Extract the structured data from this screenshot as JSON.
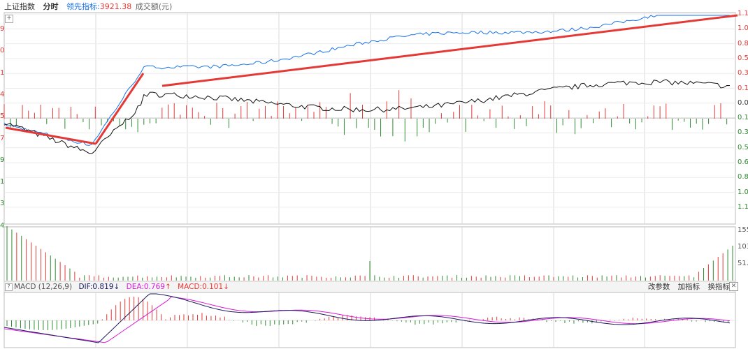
{
  "header": {
    "index_name": "上证指数",
    "mode_tab": "分时",
    "leader_label": "领先指标:",
    "leader_value": "3921.38",
    "volume_label": "成交额(元)"
  },
  "macd_panel": {
    "indicator": "MACD (12,26,9)",
    "dif_label": "DIF:",
    "dif_value": "0.819",
    "dif_arrow": "↓",
    "dea_label": "DEA:",
    "dea_value": "0.769",
    "dea_arrow": "↑",
    "macd_label": "MACD:",
    "macd_value": "0.101",
    "macd_arrow": "↓",
    "buttons": {
      "change_params": "改参数",
      "add_indicator": "加指标",
      "switch_indicator": "换指标"
    },
    "close_icon": "✕"
  },
  "left_axis_digits": [
    "9",
    "0",
    "1",
    "4",
    "5",
    "7",
    "9",
    "1",
    "3",
    "4"
  ],
  "right_axis": {
    "price_labels": [
      "1.1",
      "1.0",
      "0.8",
      "0.5",
      "0.3",
      "0.1",
      "0.0",
      "0.1",
      "0.3",
      "0.5",
      "0.6",
      "0.8",
      "1.0",
      "1.1"
    ],
    "volume_labels": [
      "155",
      "103",
      "51."
    ]
  },
  "icons": {
    "plus_icon": "+",
    "indicator_icon": "?"
  },
  "colors": {
    "up_red": "#e53935",
    "down_green": "#2e8b2e",
    "leader_blue": "#1a73e8",
    "price_black": "#111111",
    "dif_navy": "#1a1a5e",
    "dea_magenta": "#d81bd8",
    "trend_red": "#e53935",
    "grid": "#d8d8d8"
  }
}
